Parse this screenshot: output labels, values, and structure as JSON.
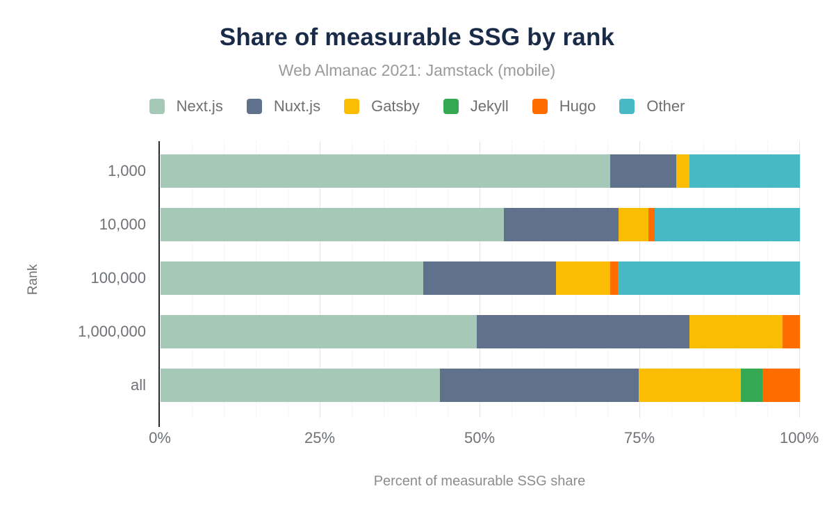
{
  "chart_data": {
    "type": "bar",
    "orientation": "horizontal",
    "stacked": true,
    "stack_unit": "percent",
    "title": "Share of measurable SSG by rank",
    "subtitle": "Web Almanac 2021: Jamstack (mobile)",
    "xlabel": "Percent of measurable SSG share",
    "ylabel": "Rank",
    "categories": [
      "1,000",
      "10,000",
      "100,000",
      "1,000,000",
      "all"
    ],
    "series": [
      {
        "name": "Next.js",
        "color": "#a5c9b6",
        "values": [
          70.3,
          53.7,
          41.1,
          49.5,
          43.7
        ]
      },
      {
        "name": "Nuxt.js",
        "color": "#60718c",
        "values": [
          10.4,
          17.9,
          20.7,
          33.2,
          31.1
        ]
      },
      {
        "name": "Gatsby",
        "color": "#fbbc04",
        "values": [
          2.0,
          4.7,
          8.5,
          14.6,
          16.0
        ]
      },
      {
        "name": "Jekyll",
        "color": "#34a853",
        "values": [
          0,
          0,
          0,
          0,
          3.3
        ]
      },
      {
        "name": "Hugo",
        "color": "#ff6d00",
        "values": [
          0,
          1.0,
          1.2,
          2.7,
          5.9
        ]
      },
      {
        "name": "Other",
        "color": "#47b9c4",
        "values": [
          17.3,
          22.7,
          28.5,
          0,
          0
        ]
      }
    ],
    "xlim": [
      0,
      100
    ],
    "xticks": [
      "0%",
      "25%",
      "50%",
      "75%",
      "100%"
    ],
    "xtick_values": [
      0,
      25,
      50,
      75,
      100
    ],
    "grid": true,
    "legend_position": "top"
  },
  "style": {
    "title_color": "#1a2b4a",
    "subtitle_color": "#9a9a9a",
    "axis_text_color": "#6e7277",
    "axis_title_color": "#8c8c8c",
    "axis_line_color": "#262a33",
    "gridline_minor_color": "#ececec",
    "gridline_major_color": "#e3e3e3",
    "background": "#ffffff"
  }
}
